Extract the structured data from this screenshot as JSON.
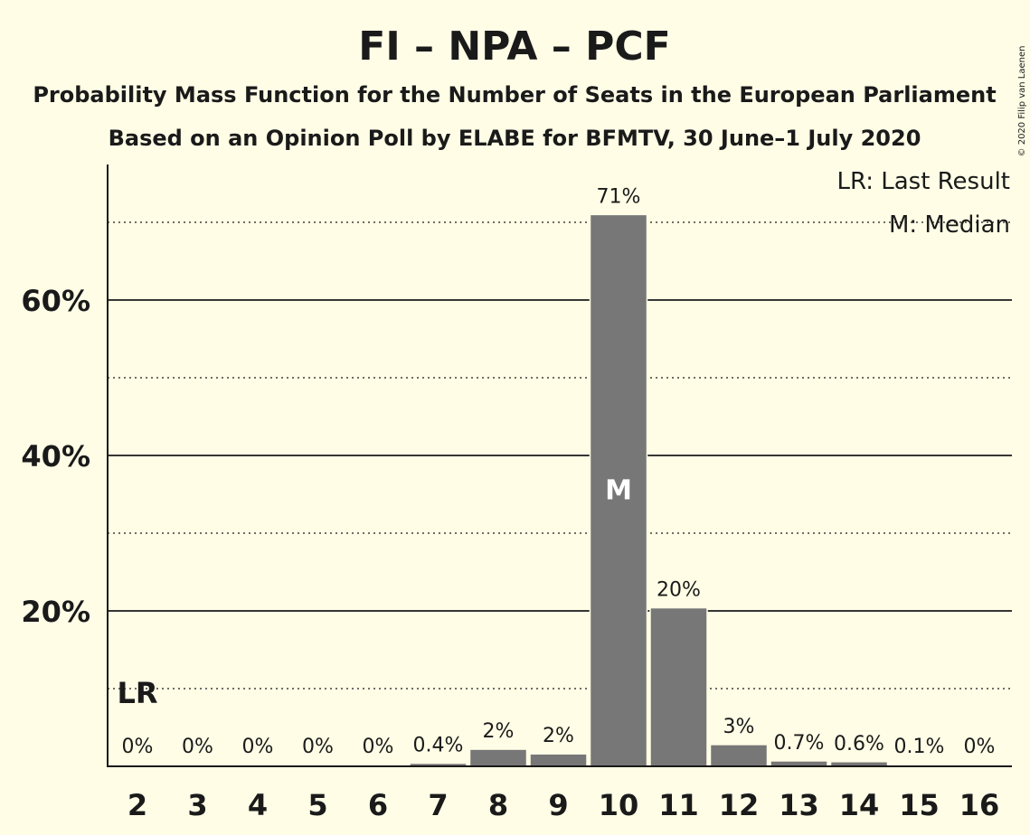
{
  "title": "FI – NPA – PCF",
  "subtitle1": "Probability Mass Function for the Number of Seats in the European Parliament",
  "subtitle2": "Based on an Opinion Poll by ELABE for BFMTV, 30 June–1 July 2020",
  "copyright": "© 2020 Filip van Laenen",
  "legend": {
    "last_result": "LR: Last Result",
    "median": "M: Median"
  },
  "colors": {
    "background": "#FFFDE6",
    "bar": "#777777",
    "text": "#1a1a1a",
    "median_marker": "#FFFFFF"
  },
  "chart_data": {
    "type": "bar",
    "categories": [
      "2",
      "3",
      "4",
      "5",
      "6",
      "7",
      "8",
      "9",
      "10",
      "11",
      "12",
      "13",
      "14",
      "15",
      "16"
    ],
    "values": [
      0,
      0,
      0,
      0,
      0,
      0.4,
      2.2,
      1.6,
      71,
      20.4,
      2.8,
      0.7,
      0.6,
      0.1,
      0
    ],
    "value_labels": [
      "0%",
      "0%",
      "0%",
      "0%",
      "0%",
      "0.4%",
      "2%",
      "2%",
      "71%",
      "20%",
      "3%",
      "0.7%",
      "0.6%",
      "0.1%",
      "0%"
    ],
    "ylim": [
      0,
      77
    ],
    "yticks": [
      20,
      40,
      60
    ],
    "ytick_labels": [
      "20%",
      "40%",
      "60%"
    ],
    "minor_gridlines": [
      10,
      30,
      50,
      70
    ],
    "last_result": {
      "category": "2",
      "label": "LR"
    },
    "median": {
      "category": "10",
      "label": "M"
    },
    "legend_position": "top-right"
  }
}
